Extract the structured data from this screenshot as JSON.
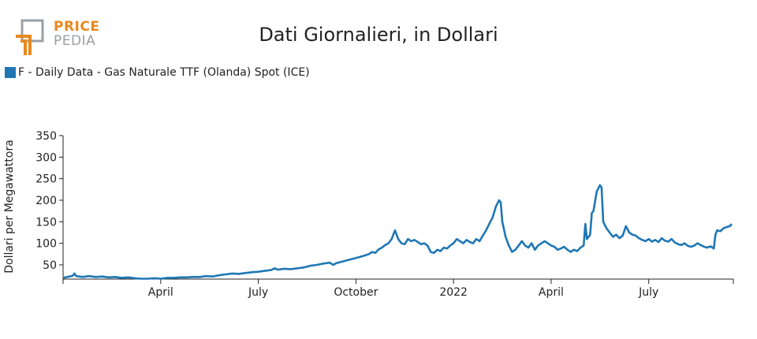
{
  "logo": {
    "line1": "PRICE",
    "line2": "PEDIA"
  },
  "colors": {
    "series": "#1f77b4",
    "logo_orange": "#e8891e",
    "logo_gray": "#9aa0a6"
  },
  "chart_data": {
    "type": "line",
    "title": "Dati Giornalieri, in Dollari",
    "ylabel": "Dollari per Megawattora",
    "xlabel": "",
    "ylim": [
      17,
      350
    ],
    "yticks": [
      50,
      100,
      150,
      200,
      250,
      300,
      350
    ],
    "xticks": [
      {
        "label": "April",
        "x": 3
      },
      {
        "label": "July",
        "x": 6
      },
      {
        "label": "October",
        "x": 9
      },
      {
        "label": "2022",
        "x": 12
      },
      {
        "label": "April",
        "x": 15
      },
      {
        "label": "July",
        "x": 18
      }
    ],
    "xlim": [
      0,
      20.6
    ],
    "x_unit": "months since January 2021",
    "legend_position": "top-left",
    "grid": false,
    "series": [
      {
        "name": "F - Daily Data - Gas Naturale TTF (Olanda) Spot (ICE)",
        "points": [
          [
            0.0,
            20
          ],
          [
            0.2,
            23
          ],
          [
            0.3,
            25
          ],
          [
            0.35,
            30
          ],
          [
            0.4,
            24
          ],
          [
            0.6,
            22
          ],
          [
            0.8,
            24
          ],
          [
            1.0,
            22
          ],
          [
            1.2,
            23
          ],
          [
            1.4,
            21
          ],
          [
            1.6,
            22
          ],
          [
            1.8,
            20
          ],
          [
            2.0,
            21
          ],
          [
            2.2,
            19
          ],
          [
            2.4,
            18
          ],
          [
            2.6,
            18
          ],
          [
            2.8,
            19
          ],
          [
            3.0,
            18
          ],
          [
            3.2,
            20
          ],
          [
            3.4,
            20
          ],
          [
            3.6,
            21
          ],
          [
            3.8,
            21
          ],
          [
            4.0,
            22
          ],
          [
            4.2,
            22
          ],
          [
            4.4,
            24
          ],
          [
            4.6,
            23
          ],
          [
            4.8,
            26
          ],
          [
            5.0,
            28
          ],
          [
            5.2,
            30
          ],
          [
            5.4,
            29
          ],
          [
            5.6,
            31
          ],
          [
            5.8,
            33
          ],
          [
            6.0,
            34
          ],
          [
            6.2,
            36
          ],
          [
            6.4,
            38
          ],
          [
            6.5,
            42
          ],
          [
            6.6,
            39
          ],
          [
            6.8,
            41
          ],
          [
            7.0,
            40
          ],
          [
            7.2,
            42
          ],
          [
            7.4,
            44
          ],
          [
            7.6,
            48
          ],
          [
            7.8,
            50
          ],
          [
            8.0,
            53
          ],
          [
            8.2,
            55
          ],
          [
            8.3,
            50
          ],
          [
            8.4,
            54
          ],
          [
            8.6,
            58
          ],
          [
            8.8,
            62
          ],
          [
            9.0,
            66
          ],
          [
            9.2,
            70
          ],
          [
            9.4,
            75
          ],
          [
            9.5,
            80
          ],
          [
            9.6,
            78
          ],
          [
            9.7,
            86
          ],
          [
            9.8,
            90
          ],
          [
            9.9,
            96
          ],
          [
            10.0,
            100
          ],
          [
            10.1,
            110
          ],
          [
            10.2,
            130
          ],
          [
            10.3,
            110
          ],
          [
            10.4,
            100
          ],
          [
            10.5,
            98
          ],
          [
            10.6,
            110
          ],
          [
            10.7,
            105
          ],
          [
            10.8,
            108
          ],
          [
            10.9,
            103
          ],
          [
            11.0,
            98
          ],
          [
            11.1,
            100
          ],
          [
            11.2,
            95
          ],
          [
            11.3,
            80
          ],
          [
            11.4,
            78
          ],
          [
            11.5,
            85
          ],
          [
            11.6,
            82
          ],
          [
            11.7,
            90
          ],
          [
            11.8,
            88
          ],
          [
            11.9,
            95
          ],
          [
            12.0,
            100
          ],
          [
            12.1,
            110
          ],
          [
            12.2,
            105
          ],
          [
            12.3,
            100
          ],
          [
            12.4,
            108
          ],
          [
            12.5,
            103
          ],
          [
            12.6,
            100
          ],
          [
            12.7,
            110
          ],
          [
            12.8,
            105
          ],
          [
            12.9,
            118
          ],
          [
            13.0,
            130
          ],
          [
            13.1,
            145
          ],
          [
            13.2,
            160
          ],
          [
            13.3,
            185
          ],
          [
            13.4,
            200
          ],
          [
            13.45,
            195
          ],
          [
            13.5,
            150
          ],
          [
            13.6,
            115
          ],
          [
            13.7,
            95
          ],
          [
            13.8,
            80
          ],
          [
            13.9,
            85
          ],
          [
            14.0,
            95
          ],
          [
            14.1,
            105
          ],
          [
            14.2,
            95
          ],
          [
            14.3,
            90
          ],
          [
            14.4,
            100
          ],
          [
            14.5,
            85
          ],
          [
            14.6,
            95
          ],
          [
            14.7,
            100
          ],
          [
            14.8,
            105
          ],
          [
            14.9,
            100
          ],
          [
            15.0,
            95
          ],
          [
            15.1,
            92
          ],
          [
            15.2,
            85
          ],
          [
            15.3,
            88
          ],
          [
            15.4,
            92
          ],
          [
            15.5,
            85
          ],
          [
            15.6,
            80
          ],
          [
            15.7,
            85
          ],
          [
            15.8,
            82
          ],
          [
            15.9,
            90
          ],
          [
            16.0,
            95
          ],
          [
            16.05,
            145
          ],
          [
            16.1,
            110
          ],
          [
            16.2,
            120
          ],
          [
            16.25,
            170
          ],
          [
            16.3,
            175
          ],
          [
            16.4,
            220
          ],
          [
            16.5,
            235
          ],
          [
            16.55,
            230
          ],
          [
            16.6,
            150
          ],
          [
            16.7,
            135
          ],
          [
            16.8,
            125
          ],
          [
            16.9,
            115
          ],
          [
            17.0,
            120
          ],
          [
            17.1,
            112
          ],
          [
            17.2,
            118
          ],
          [
            17.3,
            140
          ],
          [
            17.4,
            125
          ],
          [
            17.5,
            120
          ],
          [
            17.6,
            118
          ],
          [
            17.7,
            112
          ],
          [
            17.8,
            108
          ],
          [
            17.9,
            105
          ],
          [
            18.0,
            110
          ],
          [
            18.1,
            104
          ],
          [
            18.2,
            108
          ],
          [
            18.3,
            103
          ],
          [
            18.4,
            112
          ],
          [
            18.5,
            106
          ],
          [
            18.6,
            104
          ],
          [
            18.7,
            110
          ],
          [
            18.8,
            102
          ],
          [
            18.9,
            98
          ],
          [
            19.0,
            96
          ],
          [
            19.1,
            100
          ],
          [
            19.2,
            94
          ],
          [
            19.3,
            92
          ],
          [
            19.4,
            95
          ],
          [
            19.5,
            100
          ],
          [
            19.6,
            96
          ],
          [
            19.7,
            92
          ],
          [
            19.8,
            90
          ],
          [
            19.9,
            93
          ],
          [
            20.0,
            88
          ],
          [
            20.05,
            120
          ],
          [
            20.1,
            130
          ],
          [
            20.2,
            128
          ],
          [
            20.3,
            135
          ],
          [
            20.4,
            138
          ],
          [
            20.5,
            140
          ],
          [
            20.55,
            145
          ]
        ]
      }
    ]
  }
}
